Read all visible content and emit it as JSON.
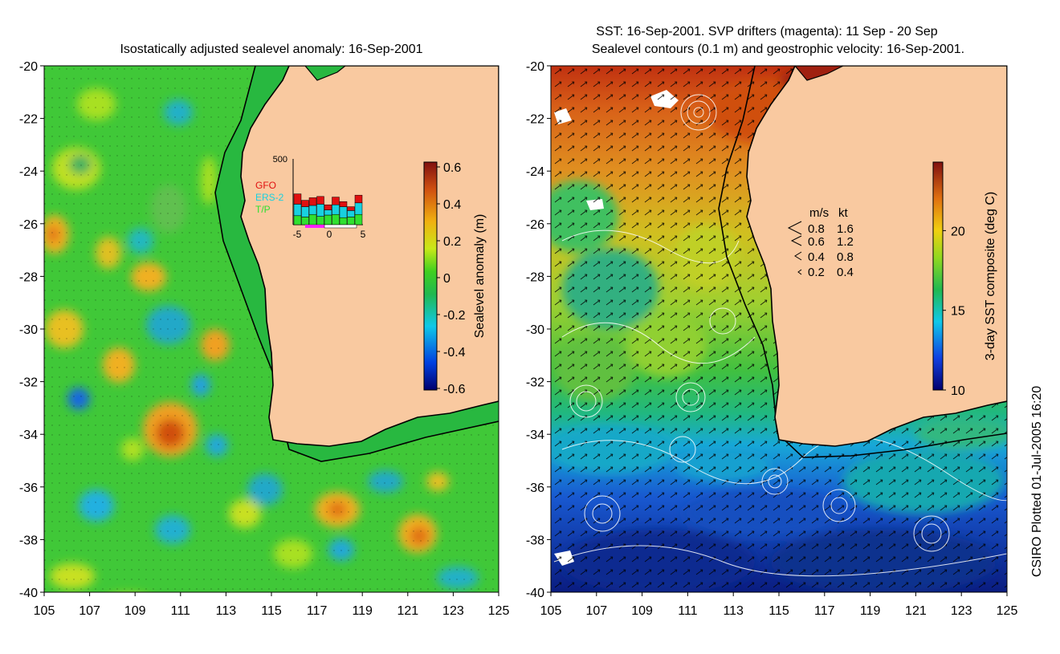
{
  "left_panel": {
    "title": "Isostatically adjusted sealevel anomaly: 16-Sep-2001",
    "y_ticks": [
      "-20",
      "-22",
      "-24",
      "-26",
      "-28",
      "-30",
      "-32",
      "-34",
      "-36",
      "-38",
      "-40"
    ],
    "x_ticks": [
      "105",
      "107",
      "109",
      "111",
      "113",
      "115",
      "117",
      "119",
      "121",
      "123",
      "125"
    ],
    "colorbar": {
      "label": "Sealevel anomaly (m)",
      "ticks": [
        "0.6",
        "0.4",
        "0.2",
        "0",
        "-0.2",
        "-0.4",
        "-0.6"
      ]
    },
    "inset": {
      "y_max_label": "500",
      "x_ticks": [
        "-5",
        "0",
        "5"
      ],
      "legend": [
        {
          "label": "GFO",
          "color": "#e01010"
        },
        {
          "label": "ERS-2",
          "color": "#18d0e0"
        },
        {
          "label": "T/P",
          "color": "#30e030"
        }
      ],
      "bars": [
        {
          "tp": 70,
          "ers": 90,
          "gfo": 80
        },
        {
          "tp": 60,
          "ers": 80,
          "gfo": 50
        },
        {
          "tp": 80,
          "ers": 70,
          "gfo": 60
        },
        {
          "tp": 65,
          "ers": 95,
          "gfo": 60
        },
        {
          "tp": 75,
          "ers": 40,
          "gfo": 40
        },
        {
          "tp": 80,
          "ers": 75,
          "gfo": 60
        },
        {
          "tp": 55,
          "ers": 85,
          "gfo": 40
        },
        {
          "tp": 60,
          "ers": 50,
          "gfo": 30
        },
        {
          "tp": 80,
          "ers": 90,
          "gfo": 60
        }
      ]
    }
  },
  "right_panel": {
    "title_line1": "SST: 16-Sep-2001. SVP drifters (magenta): 11 Sep - 20 Sep",
    "title_line2": "Sealevel contours (0.1 m) and geostrophic velocity: 16-Sep-2001.",
    "y_ticks": [
      "-20",
      "-22",
      "-24",
      "-26",
      "-28",
      "-30",
      "-32",
      "-34",
      "-36",
      "-38",
      "-40"
    ],
    "x_ticks": [
      "105",
      "107",
      "109",
      "111",
      "113",
      "115",
      "117",
      "119",
      "121",
      "123",
      "125"
    ],
    "colorbar": {
      "label": "3-day SST composite (deg C)",
      "ticks": [
        "20",
        "15",
        "10"
      ]
    },
    "velocity_legend": {
      "header_ms": "m/s",
      "header_kt": "kt",
      "rows": [
        {
          "ms": "0.8",
          "kt": "1.6"
        },
        {
          "ms": "0.6",
          "kt": "1.2"
        },
        {
          "ms": "0.4",
          "kt": "0.8"
        },
        {
          "ms": "0.2",
          "kt": "0.4"
        }
      ]
    }
  },
  "credit": "CSIRO Plotted 01-Jul-2005 16:20",
  "colors": {
    "land": "#f9c9a0",
    "ocean_base": "#30c830"
  }
}
